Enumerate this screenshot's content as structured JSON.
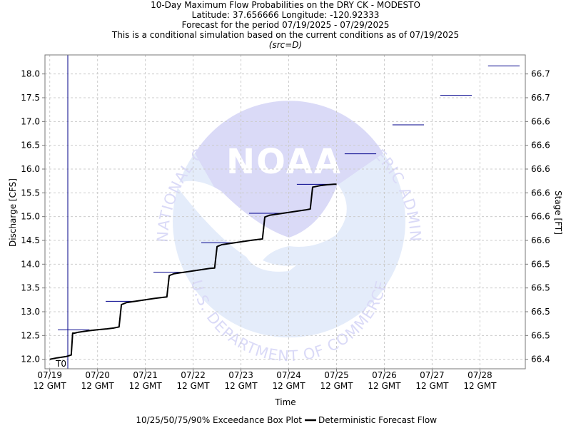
{
  "titles": [
    "10-Day Maximum Flow Probabilities on the DRY CK - MODESTO",
    "Latitude: 37.656666 Longitude: -120.92333",
    "Forecast for the period 07/19/2025 - 07/29/2025",
    "This is a conditional simulation based on the current conditions as of 07/19/2025",
    "(src=D)"
  ],
  "watermark": {
    "logo_text": "NOAA",
    "ring_top": "NATIONAL OCEANIC AND ATMOSPHERIC ADMINISTRATION",
    "ring_bottom": "U.S. DEPARTMENT OF COMMERCE"
  },
  "chart_data": {
    "type": "line",
    "xlabel": "Time",
    "ylabel": "Discharge [CFS]",
    "y2label": "Stage [FT]",
    "ylim": [
      11.8,
      18.4
    ],
    "y_ticks": [
      12.0,
      12.5,
      13.0,
      13.5,
      14.0,
      14.5,
      15.0,
      15.5,
      16.0,
      16.5,
      17.0,
      17.5,
      18.0,
      18.5
    ],
    "y_tick_labels": [
      "12.0",
      "12.5",
      "13.0",
      "13.5",
      "14.0",
      "14.5",
      "15.0",
      "15.5",
      "16.0",
      "16.5",
      "17.0",
      "17.5",
      "18.0"
    ],
    "y2_tick_labels": [
      "66.4",
      "66.5",
      "66.5",
      "66.5",
      "66.5",
      "66.6",
      "66.6",
      "66.6",
      "66.6",
      "66.6",
      "66.6",
      "66.7",
      "66.7"
    ],
    "x_ticks": [
      "07/19 12 GMT",
      "07/20 12 GMT",
      "07/21 12 GMT",
      "07/22 12 GMT",
      "07/23 12 GMT",
      "07/24 12 GMT",
      "07/25 12 GMT",
      "07/26 12 GMT",
      "07/27 12 GMT",
      "07/28 12 GMT"
    ],
    "x_tick_lines": [
      [
        "07/19",
        "12 GMT"
      ],
      [
        "07/20",
        "12 GMT"
      ],
      [
        "07/21",
        "12 GMT"
      ],
      [
        "07/22",
        "12 GMT"
      ],
      [
        "07/23",
        "12 GMT"
      ],
      [
        "07/24",
        "12 GMT"
      ],
      [
        "07/25",
        "12 GMT"
      ],
      [
        "07/26",
        "12 GMT"
      ],
      [
        "07/27",
        "12 GMT"
      ],
      [
        "07/28",
        "12 GMT"
      ]
    ],
    "x_range_days": [
      -0.1,
      9.95
    ],
    "t0_label": "T0",
    "t0_day": 0,
    "grid": true,
    "series": [
      {
        "name": "Deterministic Forecast Flow",
        "color": "#000000",
        "x_days": [
          0.0,
          0.15,
          0.35,
          0.45,
          0.48,
          0.52,
          0.6,
          0.8,
          1.0,
          1.2,
          1.35,
          1.45,
          1.5,
          1.55,
          1.6,
          1.8,
          2.0,
          2.2,
          2.35,
          2.45,
          2.5,
          2.55,
          2.6,
          2.8,
          3.0,
          3.2,
          3.35,
          3.45,
          3.5,
          3.55,
          3.6,
          3.8,
          4.0,
          4.2,
          4.35,
          4.45,
          4.5,
          4.55,
          4.6,
          4.8,
          5.0,
          5.2,
          5.35,
          5.45,
          5.5,
          5.55,
          5.65,
          5.8,
          5.95,
          6.0
        ],
        "values": [
          12.0,
          12.03,
          12.06,
          12.09,
          12.55,
          12.55,
          12.57,
          12.6,
          12.62,
          12.64,
          12.66,
          12.68,
          13.15,
          13.17,
          13.19,
          13.22,
          13.25,
          13.28,
          13.3,
          13.31,
          13.76,
          13.78,
          13.8,
          13.83,
          13.86,
          13.89,
          13.91,
          13.92,
          14.37,
          14.39,
          14.41,
          14.44,
          14.47,
          14.5,
          14.52,
          14.53,
          14.99,
          15.01,
          15.03,
          15.06,
          15.09,
          15.12,
          15.14,
          15.16,
          15.62,
          15.63,
          15.65,
          15.67,
          15.68,
          15.68
        ]
      }
    ],
    "box_plot": {
      "name": "10/25/50/75/90% Exceedance Box Plot",
      "color": "#00008b",
      "days": [
        0.5,
        1.5,
        2.5,
        3.5,
        4.5,
        5.5,
        6.5,
        7.5,
        8.5,
        9.5
      ],
      "values": [
        12.62,
        13.22,
        13.83,
        14.45,
        15.07,
        15.68,
        16.32,
        16.93,
        17.55,
        18.17
      ]
    },
    "legend_position": "bottom-center"
  }
}
